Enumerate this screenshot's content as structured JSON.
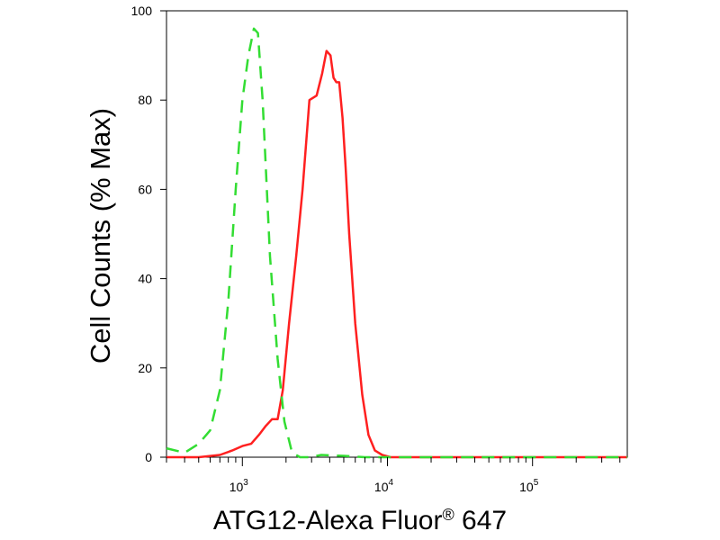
{
  "chart_data": {
    "type": "line",
    "xlabel": "ATG12-Alexa Fluor",
    "xlabel_sup": "®",
    "xlabel_suffix": " 647",
    "ylabel": "Cell Counts (% Max)",
    "x_scale": "log",
    "xlim": [
      300,
      450000
    ],
    "ylim": [
      0,
      100
    ],
    "y_ticks": [
      0,
      20,
      40,
      60,
      80,
      100
    ],
    "x_ticks": [
      {
        "value": 1000,
        "base": "10",
        "exp": "3"
      },
      {
        "value": 10000,
        "base": "10",
        "exp": "4"
      },
      {
        "value": 100000,
        "base": "10",
        "exp": "5"
      }
    ],
    "grid": false,
    "series": [
      {
        "color": "#ff2020",
        "dash": "solid",
        "x": [
          300,
          500,
          700,
          850,
          1000,
          1150,
          1300,
          1450,
          1600,
          1750,
          1900,
          2100,
          2350,
          2600,
          2900,
          3250,
          3550,
          3800,
          4050,
          4250,
          4450,
          4650,
          4900,
          5150,
          5450,
          6000,
          6700,
          7400,
          8200,
          9200,
          10500,
          12000,
          14000,
          17000,
          30000,
          100000,
          450000
        ],
        "y": [
          0,
          0,
          0.5,
          1.5,
          2.5,
          3,
          5,
          7,
          8.5,
          8.5,
          15,
          30,
          45,
          60,
          80,
          81,
          86,
          91,
          90,
          85,
          84,
          84,
          76,
          65,
          50,
          30,
          14,
          5,
          1.5,
          0.5,
          0,
          0,
          0,
          0,
          0,
          0,
          0
        ]
      },
      {
        "color": "#33dd33",
        "dash": "dashed",
        "x": [
          300,
          400,
          500,
          600,
          700,
          800,
          900,
          1000,
          1100,
          1200,
          1280,
          1380,
          1550,
          1750,
          1950,
          2200,
          2500,
          2900,
          3500,
          5000,
          7000,
          12000,
          30000,
          100000,
          450000
        ],
        "y": [
          2,
          1,
          3,
          6,
          15,
          35,
          60,
          80,
          90,
          96,
          95,
          80,
          45,
          22,
          8,
          1,
          0,
          0,
          0.5,
          0.3,
          0,
          0,
          0,
          0,
          0
        ]
      }
    ]
  }
}
